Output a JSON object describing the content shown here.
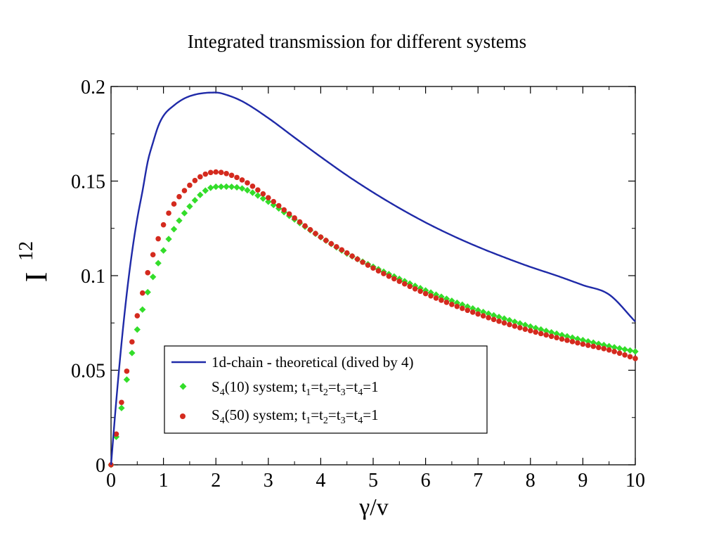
{
  "chart_data": {
    "type": "line",
    "title": "Integrated transmission for different systems",
    "xlabel": "γ/v",
    "ylabel": {
      "base": "I",
      "sup": "12"
    },
    "xlim": [
      0,
      10
    ],
    "ylim": [
      0,
      0.2
    ],
    "xticks": [
      0,
      1,
      2,
      3,
      4,
      5,
      6,
      7,
      8,
      9,
      10
    ],
    "xtick_labels": [
      "0",
      "1",
      "2",
      "3",
      "4",
      "5",
      "6",
      "7",
      "8",
      "9",
      "10"
    ],
    "yticks": [
      0,
      0.05,
      0.1,
      0.15,
      0.2
    ],
    "ytick_labels": [
      "0",
      "0.05",
      "0.1",
      "0.15",
      "0.2"
    ],
    "grid": false,
    "legend_position": "lower-left",
    "series": [
      {
        "name": "1d-chain - theoretical (dived by 4)",
        "style": "line",
        "color": "#1f2aa8",
        "points": [
          [
            0,
            0
          ],
          [
            0.1,
            0.0339
          ],
          [
            0.2,
            0.0643
          ],
          [
            0.3,
            0.0905
          ],
          [
            0.4,
            0.1123
          ],
          [
            0.5,
            0.1302
          ],
          [
            0.6,
            0.1447
          ],
          [
            0.7,
            0.1603
          ],
          [
            0.8,
            0.1703
          ],
          [
            0.9,
            0.179
          ],
          [
            1.0,
            0.1845
          ],
          [
            1.2,
            0.19
          ],
          [
            1.4,
            0.1937
          ],
          [
            1.6,
            0.1957
          ],
          [
            1.8,
            0.1966
          ],
          [
            2.0,
            0.1968
          ],
          [
            2.2,
            0.1956
          ],
          [
            2.5,
            0.1922
          ],
          [
            3.0,
            0.1833
          ],
          [
            3.5,
            0.173
          ],
          [
            4.0,
            0.1628
          ],
          [
            4.5,
            0.153
          ],
          [
            5.0,
            0.144
          ],
          [
            5.5,
            0.1357
          ],
          [
            6.0,
            0.1281
          ],
          [
            6.5,
            0.1213
          ],
          [
            7.0,
            0.1152
          ],
          [
            7.5,
            0.1097
          ],
          [
            8.0,
            0.1046
          ],
          [
            8.5,
            0.1
          ],
          [
            9.0,
            0.095
          ],
          [
            9.5,
            0.09
          ],
          [
            10.0,
            0.0757
          ]
        ]
      },
      {
        "name": "S4(10) system; t1=t2=t3=t4=1",
        "style": "diamond",
        "color": "#33dd2a",
        "points": [
          [
            0,
            0
          ],
          [
            0.5,
            0.0715
          ],
          [
            1.0,
            0.1133
          ],
          [
            1.5,
            0.1366
          ],
          [
            2.0,
            0.147
          ],
          [
            2.5,
            0.1461
          ],
          [
            3.0,
            0.1391
          ],
          [
            3.5,
            0.1297
          ],
          [
            4.0,
            0.1203
          ],
          [
            4.5,
            0.1117
          ],
          [
            5.0,
            0.1047
          ],
          [
            5.5,
            0.0983
          ],
          [
            6.0,
            0.0922
          ],
          [
            6.5,
            0.0867
          ],
          [
            7.0,
            0.0817
          ],
          [
            7.5,
            0.0773
          ],
          [
            8.0,
            0.0731
          ],
          [
            8.5,
            0.0693
          ],
          [
            9.0,
            0.0659
          ],
          [
            9.5,
            0.0627
          ],
          [
            10.0,
            0.0599
          ]
        ]
      },
      {
        "name": "S4(50) system; t1=t2=t3=t4=1",
        "style": "circle",
        "color": "#d42a1e",
        "points": [
          [
            0,
            0
          ],
          [
            0.5,
            0.0788
          ],
          [
            1.0,
            0.1269
          ],
          [
            1.5,
            0.1478
          ],
          [
            2.0,
            0.1548
          ],
          [
            2.5,
            0.1506
          ],
          [
            3.0,
            0.1412
          ],
          [
            3.5,
            0.1305
          ],
          [
            4.0,
            0.1204
          ],
          [
            4.5,
            0.112
          ],
          [
            5.0,
            0.104
          ],
          [
            5.5,
            0.097
          ],
          [
            6.0,
            0.0905
          ],
          [
            6.5,
            0.0848
          ],
          [
            7.0,
            0.0797
          ],
          [
            7.5,
            0.075
          ],
          [
            8.0,
            0.0709
          ],
          [
            8.5,
            0.0672
          ],
          [
            9.0,
            0.0638
          ],
          [
            9.5,
            0.0607
          ],
          [
            10.0,
            0.0562
          ]
        ]
      }
    ]
  },
  "legend": {
    "line": {
      "text": "1d-chain - theoretical (dived by 4)"
    },
    "s10": {
      "s": "S",
      "s_sub": "4",
      "n": "(10) system; t",
      "eq": "=t",
      "eq1": "=t",
      "eq2": "=t",
      "tail": "=1",
      "sub1": "1",
      "sub2": "2",
      "sub3": "3",
      "sub4": "4"
    },
    "s50": {
      "s": "S",
      "s_sub": "4",
      "n": "(50) system; t",
      "eq": "=t",
      "eq1": "=t",
      "eq2": "=t",
      "tail": "=1",
      "sub1": "1",
      "sub2": "2",
      "sub3": "3",
      "sub4": "4"
    }
  }
}
